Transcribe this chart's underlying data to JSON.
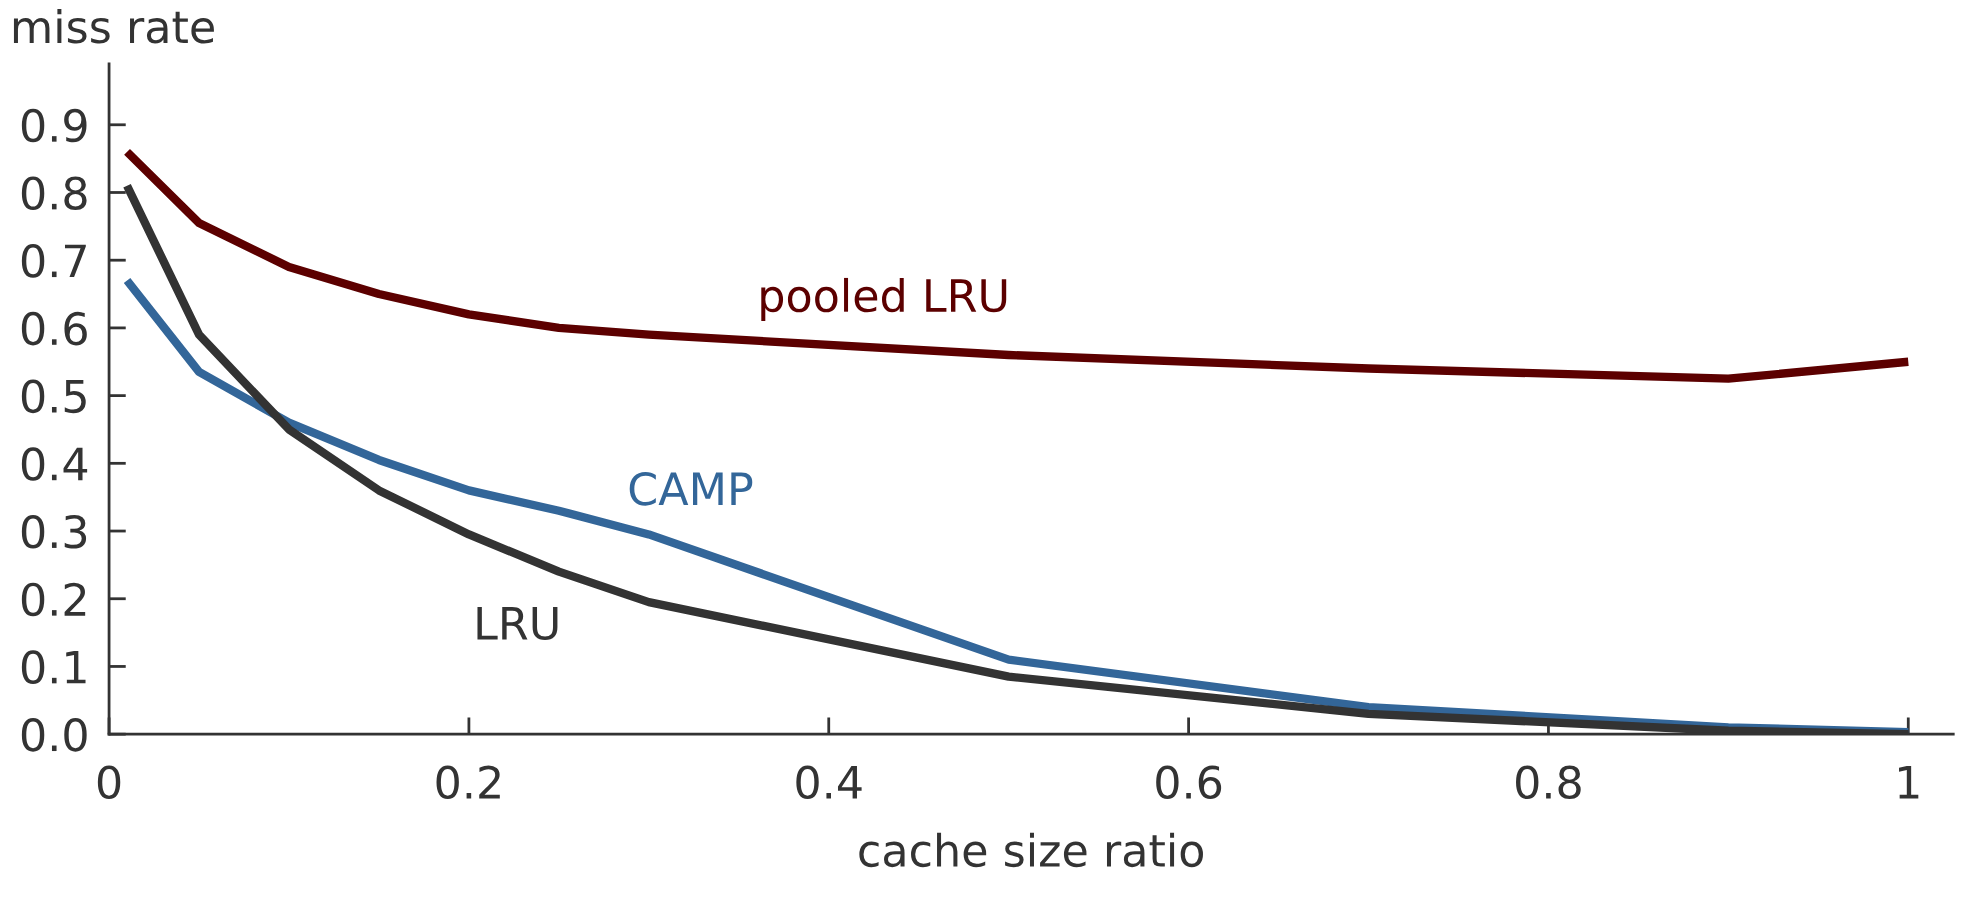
{
  "chart_data": {
    "type": "line",
    "xlabel": "cache size ratio",
    "ylabel": "miss rate",
    "xlim": [
      0,
      1.025
    ],
    "ylim": [
      0,
      0.99
    ],
    "xticks": [
      0,
      {
        "value": 0.2,
        "label": "0.2"
      },
      {
        "value": 0.4,
        "label": "0.4"
      },
      {
        "value": 0.6,
        "label": "0.6"
      },
      {
        "value": 0.8,
        "label": "0.8"
      },
      1
    ],
    "yticks": [
      {
        "value": 0,
        "label": "0.0"
      },
      0.1,
      0.2,
      0.3,
      0.4,
      0.5,
      0.6,
      0.7,
      0.8,
      0.9
    ],
    "grid": false,
    "legend": false,
    "x": [
      0.01,
      0.05,
      0.1,
      0.15,
      0.2,
      0.25,
      0.3,
      0.5,
      0.7,
      0.9,
      1
    ],
    "series": [
      {
        "name": "pooled LRU",
        "color": "#5c0000",
        "values": [
          0.86,
          0.755,
          0.69,
          0.65,
          0.62,
          0.6,
          0.59,
          0.56,
          0.54,
          0.525,
          0.55
        ]
      },
      {
        "name": "CAMP",
        "color": "#336699",
        "values": [
          0.67,
          0.535,
          0.46,
          0.405,
          0.36,
          0.33,
          0.295,
          0.11,
          0.04,
          0.01,
          0.003
        ]
      },
      {
        "name": "LRU",
        "color": "#333333",
        "values": [
          0.81,
          0.59,
          0.45,
          0.36,
          0.295,
          0.24,
          0.195,
          0.085,
          0.03,
          0.005,
          0.0
        ]
      }
    ]
  }
}
